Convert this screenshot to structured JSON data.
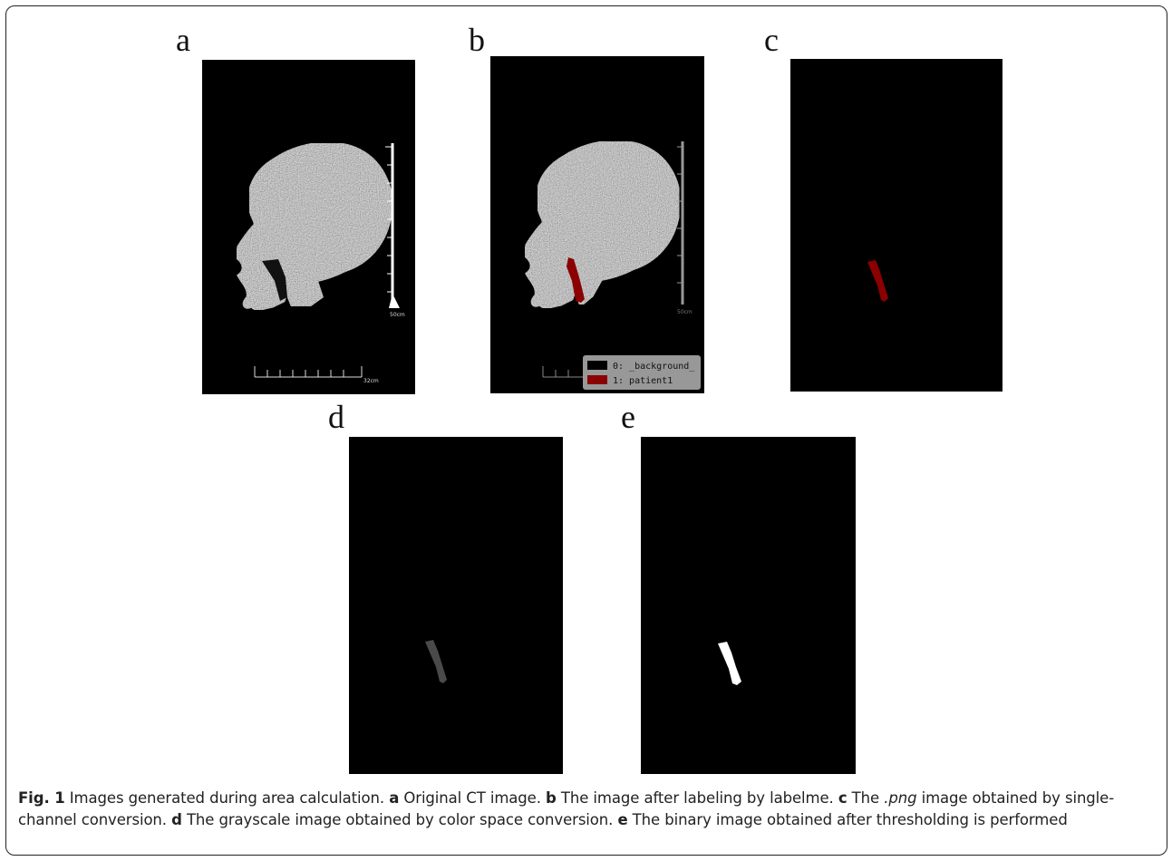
{
  "panels": {
    "a": {
      "label": "a",
      "scale_vertical": "50cm",
      "scale_horizontal": "32cm"
    },
    "b": {
      "label": "b",
      "scale_vertical": "50cm",
      "legend": [
        {
          "text": "0: _background_",
          "color": "#000000"
        },
        {
          "text": "1: patient1",
          "color": "#8b0000"
        }
      ]
    },
    "c": {
      "label": "c"
    },
    "d": {
      "label": "d"
    },
    "e": {
      "label": "e"
    }
  },
  "colors": {
    "label_red": "#8b0000",
    "label_gray": "#4a4a4a",
    "label_white": "#ffffff"
  },
  "caption": {
    "fig": "Fig. 1",
    "intro": " Images generated during area calculation. ",
    "a_key": "a",
    "a_text": " Original CT image. ",
    "b_key": "b",
    "b_text": " The image after labeling by labelme. ",
    "c_key": "c",
    "c_text_1": " The ",
    "c_ext": ".png",
    "c_text_2": " image obtained by single-channel conversion. ",
    "d_key": "d",
    "d_text": " The grayscale image obtained by color space conversion. ",
    "e_key": "e",
    "e_text": " The binary image obtained after thresholding is performed"
  }
}
